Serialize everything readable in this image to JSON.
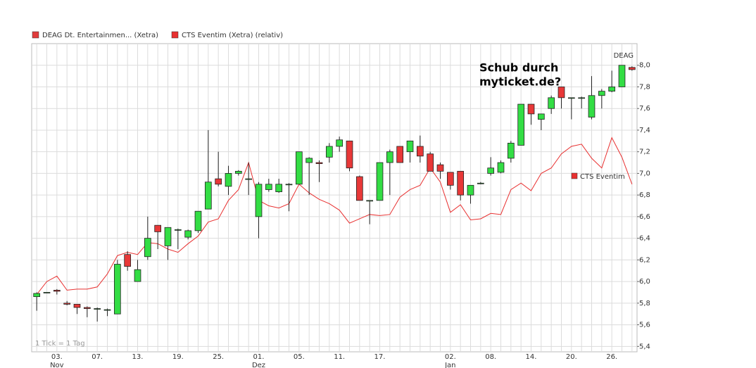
{
  "chart_data": {
    "type": "candlestick",
    "legend": [
      "DEAG Dt. Entertainmen... (Xetra)",
      "CTS Eventim (Xetra) (relativ)"
    ],
    "annotation": [
      "Schub durch",
      "myticket.de?"
    ],
    "end_label": "DEAG",
    "line_label": "CTS Eventim",
    "footnote": "1 Tick = 1 Tag",
    "categories": [
      null,
      null,
      "03.",
      null,
      null,
      null,
      "07.",
      null,
      null,
      null,
      "13.",
      null,
      null,
      null,
      "19.",
      null,
      null,
      null,
      "25.",
      null,
      null,
      null,
      "01.",
      null,
      null,
      null,
      "05.",
      null,
      null,
      null,
      "11.",
      null,
      null,
      null,
      "17.",
      null,
      null,
      null,
      null,
      null,
      null,
      "02.",
      null,
      null,
      null,
      "08.",
      null,
      null,
      null,
      "14.",
      null,
      null,
      null,
      "20.",
      null,
      null,
      null,
      "26.",
      null,
      null
    ],
    "x_sublabels": [
      null,
      null,
      "Nov",
      null,
      null,
      null,
      null,
      null,
      null,
      null,
      null,
      null,
      null,
      null,
      null,
      null,
      null,
      null,
      null,
      null,
      null,
      null,
      "Dez",
      null,
      null,
      null,
      null,
      null,
      null,
      null,
      null,
      null,
      null,
      null,
      null,
      null,
      null,
      null,
      null,
      null,
      null,
      "Jan",
      null,
      null,
      null,
      null,
      null,
      null,
      null,
      null,
      null,
      null,
      null,
      null,
      null,
      null,
      null,
      null,
      null,
      null
    ],
    "ylim": [
      5.35,
      8.2
    ],
    "yticks": [
      {
        "value": 5.4,
        "label": "5,4"
      },
      {
        "value": 5.6,
        "label": "5,6"
      },
      {
        "value": 5.8,
        "label": "5,8"
      },
      {
        "value": 6.0,
        "label": "6,0"
      },
      {
        "value": 6.2,
        "label": "6,2"
      },
      {
        "value": 6.4,
        "label": "6,4"
      },
      {
        "value": 6.6,
        "label": "6,6"
      },
      {
        "value": 6.8,
        "label": "6,8"
      },
      {
        "value": 7.0,
        "label": "7,0"
      },
      {
        "value": 7.2,
        "label": "7,2"
      },
      {
        "value": 7.4,
        "label": "7,4"
      },
      {
        "value": 7.6,
        "label": "7,6"
      },
      {
        "value": 7.8,
        "label": "7,8"
      },
      {
        "value": 8.0,
        "label": "8,0"
      }
    ],
    "grid": true,
    "series": [
      {
        "name": "DEAG",
        "type": "candlestick",
        "color": "#e03c3c",
        "up_color": "#33dd44",
        "down_color": "#e83838",
        "open": [
          5.86,
          5.9,
          5.92,
          5.8,
          5.79,
          5.76,
          5.75,
          5.74,
          5.7,
          6.25,
          6.0,
          6.23,
          6.52,
          6.33,
          6.48,
          6.41,
          6.47,
          6.67,
          6.95,
          6.88,
          7.0,
          6.95,
          6.6,
          6.85,
          6.83,
          6.9,
          6.9,
          7.1,
          7.1,
          7.15,
          7.25,
          7.3,
          6.97,
          6.75,
          6.75,
          7.1,
          7.25,
          7.2,
          7.25,
          7.18,
          7.08,
          7.01,
          7.02,
          6.8,
          6.91,
          7.0,
          7.01,
          7.14,
          7.26,
          7.64,
          7.5,
          7.6,
          7.8,
          7.7,
          7.7,
          7.52,
          7.72,
          7.76,
          7.8,
          7.98
        ],
        "high": [
          5.9,
          5.9,
          5.93,
          5.82,
          5.79,
          5.77,
          5.76,
          5.75,
          6.2,
          6.28,
          6.2,
          6.6,
          6.52,
          6.5,
          6.49,
          6.48,
          6.65,
          7.4,
          7.2,
          7.07,
          7.03,
          7.1,
          6.92,
          6.95,
          6.95,
          6.91,
          7.2,
          7.15,
          7.12,
          7.28,
          7.34,
          7.3,
          6.98,
          6.75,
          7.1,
          7.22,
          7.25,
          7.3,
          7.35,
          7.2,
          7.1,
          7.01,
          7.02,
          6.89,
          6.92,
          7.15,
          7.12,
          7.3,
          7.64,
          7.64,
          7.55,
          7.72,
          7.8,
          7.7,
          7.71,
          7.9,
          7.78,
          7.95,
          8.0,
          7.99
        ],
        "low": [
          5.73,
          5.9,
          5.88,
          5.78,
          5.7,
          5.67,
          5.63,
          5.68,
          5.7,
          6.1,
          6.0,
          6.2,
          6.3,
          6.2,
          6.3,
          6.39,
          6.45,
          6.67,
          6.88,
          6.8,
          6.98,
          6.8,
          6.4,
          6.83,
          6.82,
          6.65,
          6.9,
          6.8,
          6.92,
          7.1,
          7.2,
          7.02,
          6.75,
          6.53,
          6.75,
          6.8,
          7.1,
          7.1,
          7.1,
          7.02,
          6.95,
          6.85,
          6.75,
          6.72,
          6.9,
          6.98,
          7.0,
          7.1,
          7.26,
          7.45,
          7.4,
          7.55,
          7.6,
          7.5,
          7.6,
          7.5,
          7.6,
          7.75,
          7.8,
          7.95
        ],
        "close": [
          5.89,
          5.9,
          5.91,
          5.79,
          5.76,
          5.75,
          5.75,
          5.74,
          6.16,
          6.14,
          6.11,
          6.4,
          6.46,
          6.5,
          6.48,
          6.47,
          6.65,
          6.92,
          6.9,
          7.0,
          7.02,
          6.95,
          6.9,
          6.9,
          6.9,
          6.9,
          7.2,
          7.14,
          7.09,
          7.25,
          7.31,
          7.05,
          6.75,
          6.75,
          7.1,
          7.2,
          7.1,
          7.3,
          7.16,
          7.02,
          7.02,
          6.89,
          6.8,
          6.89,
          6.91,
          7.05,
          7.1,
          7.28,
          7.64,
          7.55,
          7.55,
          7.7,
          7.7,
          7.7,
          7.7,
          7.72,
          7.76,
          7.8,
          8.0,
          7.96
        ]
      },
      {
        "name": "CTS Eventim",
        "type": "line",
        "color": "#e83030",
        "values": [
          5.88,
          6.0,
          6.05,
          5.92,
          5.93,
          5.93,
          5.95,
          6.07,
          6.24,
          6.27,
          6.25,
          6.36,
          6.35,
          6.3,
          6.27,
          6.35,
          6.42,
          6.55,
          6.58,
          6.75,
          6.85,
          7.1,
          6.75,
          6.7,
          6.68,
          6.72,
          6.9,
          6.82,
          6.76,
          6.72,
          6.66,
          6.54,
          6.58,
          6.62,
          6.61,
          6.62,
          6.78,
          6.85,
          6.89,
          7.05,
          6.92,
          6.64,
          6.71,
          6.57,
          6.58,
          6.63,
          6.62,
          6.85,
          6.91,
          6.84,
          7.0,
          7.05,
          7.18,
          7.25,
          7.27,
          7.14,
          7.05,
          7.33,
          7.15,
          6.9
        ]
      }
    ]
  }
}
